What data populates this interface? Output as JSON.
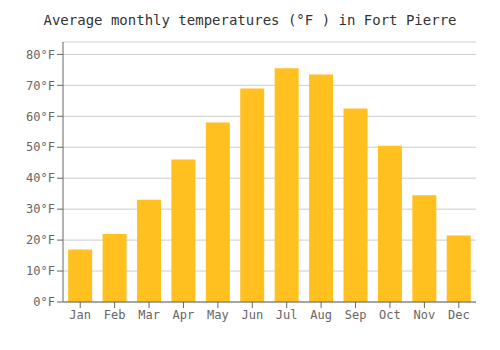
{
  "chart_data": {
    "type": "bar",
    "title": "Average monthly temperatures (°F ) in Fort Pierre",
    "categories": [
      "Jan",
      "Feb",
      "Mar",
      "Apr",
      "May",
      "Jun",
      "Jul",
      "Aug",
      "Sep",
      "Oct",
      "Nov",
      "Dec"
    ],
    "values": [
      17,
      22,
      33,
      46,
      58,
      69,
      75.5,
      73.5,
      62.5,
      50.5,
      34.5,
      21.5
    ],
    "color": "#FFC020",
    "ylim": [
      0,
      84
    ],
    "yticks": [
      {
        "value": 0,
        "label": "0°F"
      },
      {
        "value": 10,
        "label": "10°F"
      },
      {
        "value": 20,
        "label": "20°F"
      },
      {
        "value": 30,
        "label": "30°F"
      },
      {
        "value": 40,
        "label": "40°F"
      },
      {
        "value": 50,
        "label": "50°F"
      },
      {
        "value": 60,
        "label": "60°F"
      },
      {
        "value": 70,
        "label": "70°F"
      },
      {
        "value": 80,
        "label": "80°F"
      }
    ],
    "grid": true
  }
}
